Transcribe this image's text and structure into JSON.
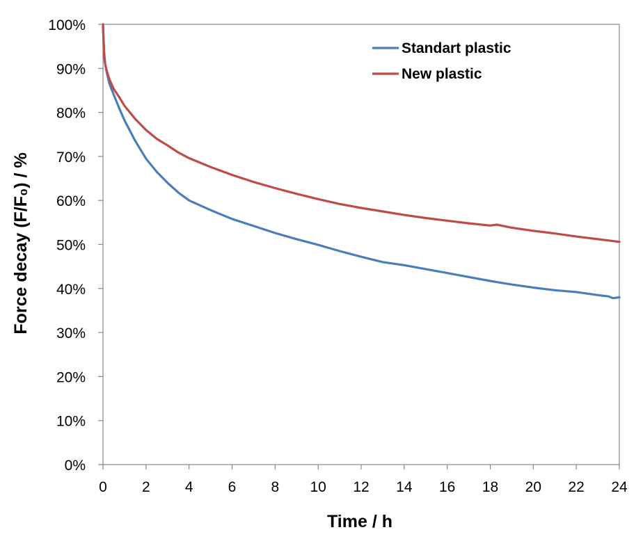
{
  "chart_data": {
    "type": "line",
    "title": "",
    "xlabel": "Time / h",
    "ylabel": "Force decay (F/F₀) / %",
    "xlim": [
      0,
      24
    ],
    "ylim": [
      0,
      100
    ],
    "x_ticks": [
      "0",
      "2",
      "4",
      "6",
      "8",
      "10",
      "12",
      "14",
      "16",
      "18",
      "20",
      "22",
      "24"
    ],
    "y_ticks": [
      "0%",
      "10%",
      "20%",
      "30%",
      "40%",
      "50%",
      "60%",
      "70%",
      "80%",
      "90%",
      "100%"
    ],
    "grid": false,
    "legend_position": "top-right",
    "series": [
      {
        "name": "Standart plastic",
        "color": "#4a7ebb",
        "x": [
          0,
          0.05,
          0.1,
          0.2,
          0.3,
          0.5,
          0.75,
          1,
          1.5,
          2,
          2.5,
          3,
          3.5,
          4,
          5,
          6,
          7,
          8,
          9,
          10,
          11,
          12,
          13,
          14,
          15,
          16,
          17,
          18,
          18.5,
          19,
          20,
          21,
          22,
          23,
          23.5,
          23.7,
          24
        ],
        "values": [
          100,
          94,
          91,
          88.5,
          86.5,
          84,
          81,
          78.2,
          73.5,
          69.5,
          66.5,
          64,
          61.8,
          60,
          57.8,
          55.8,
          54.2,
          52.6,
          51.2,
          49.9,
          48.5,
          47.2,
          46,
          45.3,
          44.4,
          43.5,
          42.6,
          41.7,
          41.3,
          40.9,
          40.2,
          39.6,
          39.2,
          38.5,
          38.2,
          37.8,
          38
        ]
      },
      {
        "name": "New plastic",
        "color": "#be4b48",
        "x": [
          0,
          0.05,
          0.1,
          0.2,
          0.3,
          0.5,
          0.75,
          1,
          1.5,
          2,
          2.5,
          3,
          3.5,
          4,
          5,
          6,
          7,
          8,
          9,
          10,
          11,
          12,
          13,
          14,
          15,
          16,
          17,
          18,
          18.3,
          18.6,
          19,
          20,
          21,
          22,
          23,
          24
        ],
        "values": [
          100,
          93,
          91,
          89,
          87.5,
          85.3,
          83.5,
          81.5,
          78.5,
          76,
          74,
          72.5,
          70.9,
          69.6,
          67.6,
          65.8,
          64.2,
          62.8,
          61.5,
          60.3,
          59.2,
          58.3,
          57.5,
          56.7,
          56,
          55.4,
          54.8,
          54.3,
          54.5,
          54.2,
          53.8,
          53.1,
          52.5,
          51.8,
          51.2,
          50.6
        ]
      }
    ]
  }
}
